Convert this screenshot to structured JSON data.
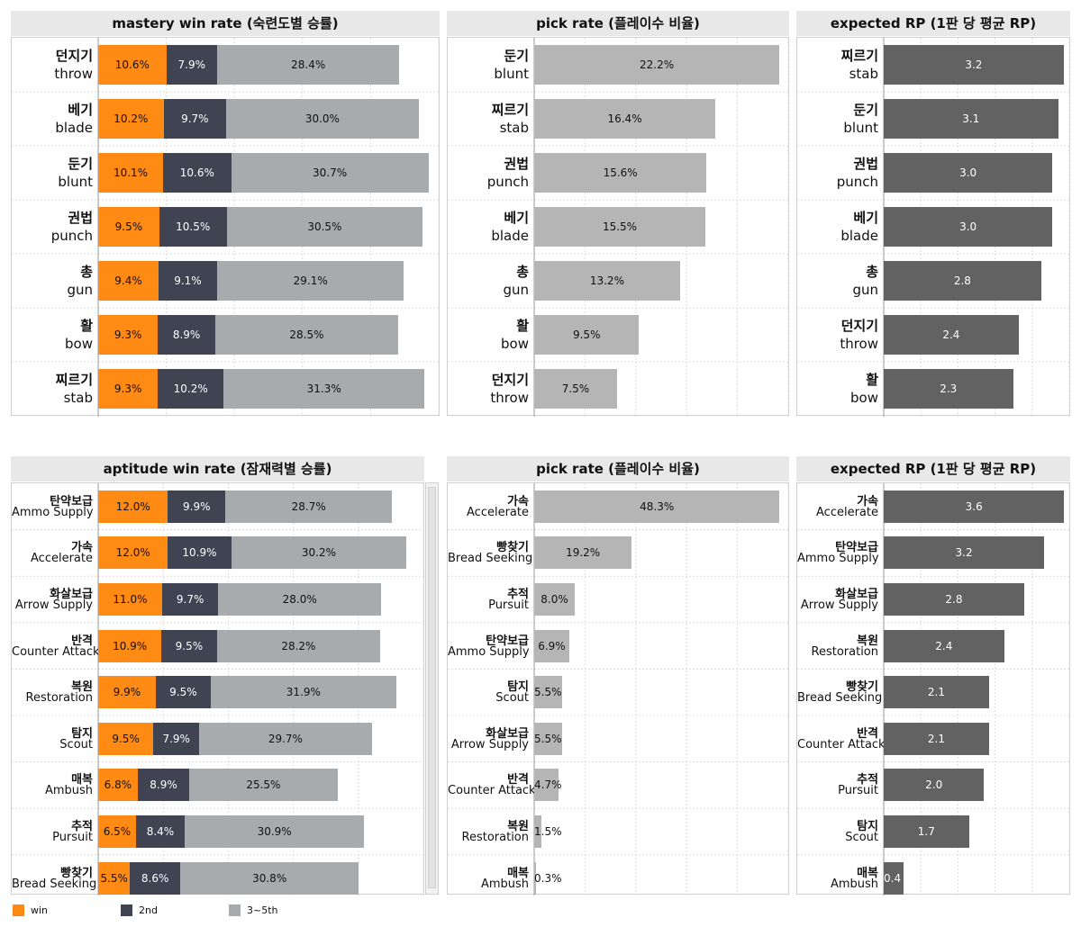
{
  "colors": {
    "win": "#ff8a14",
    "second": "#3f4352",
    "third": "#a7abae",
    "pick": "#b5b5b5",
    "rp": "#626262"
  },
  "legend": {
    "win": "win",
    "second": "2nd",
    "third": "3~5th"
  },
  "chart_data": [
    {
      "type": "bar",
      "title": "mastery win rate (숙련도별 승률)",
      "categories": [
        [
          "던지기",
          "throw"
        ],
        [
          "베기",
          "blade"
        ],
        [
          "둔기",
          "blunt"
        ],
        [
          "권법",
          "punch"
        ],
        [
          "총",
          "gun"
        ],
        [
          "활",
          "bow"
        ],
        [
          "찌르기",
          "stab"
        ]
      ],
      "series": [
        {
          "name": "win",
          "values": [
            10.6,
            10.2,
            10.1,
            9.5,
            9.4,
            9.3,
            9.3
          ]
        },
        {
          "name": "2nd",
          "values": [
            7.9,
            9.7,
            10.6,
            10.5,
            9.1,
            8.9,
            10.2
          ]
        },
        {
          "name": "3~5th",
          "values": [
            28.4,
            30.0,
            30.7,
            30.5,
            29.1,
            28.5,
            31.3
          ]
        }
      ],
      "unit": "%",
      "xlim": [
        0,
        53
      ]
    },
    {
      "type": "bar",
      "title": "pick rate (플레이수 비율)",
      "categories": [
        [
          "둔기",
          "blunt"
        ],
        [
          "찌르기",
          "stab"
        ],
        [
          "권법",
          "punch"
        ],
        [
          "베기",
          "blade"
        ],
        [
          "총",
          "gun"
        ],
        [
          "활",
          "bow"
        ],
        [
          "던지기",
          "throw"
        ]
      ],
      "values": [
        22.2,
        16.4,
        15.6,
        15.5,
        13.2,
        9.5,
        7.5
      ],
      "unit": "%",
      "xlim": [
        0,
        23
      ]
    },
    {
      "type": "bar",
      "title": "expected RP (1판 당 평균 RP)",
      "categories": [
        [
          "찌르기",
          "stab"
        ],
        [
          "둔기",
          "blunt"
        ],
        [
          "권법",
          "punch"
        ],
        [
          "베기",
          "blade"
        ],
        [
          "총",
          "gun"
        ],
        [
          "던지기",
          "throw"
        ],
        [
          "활",
          "bow"
        ]
      ],
      "values": [
        3.2,
        3.1,
        3.0,
        3.0,
        2.8,
        2.4,
        2.3
      ],
      "unit": "",
      "xlim": [
        0,
        3.3
      ]
    },
    {
      "type": "bar",
      "title": "aptitude win rate (잠재력별 승률)",
      "categories": [
        [
          "탄약보급",
          "Ammo Supply"
        ],
        [
          "가속",
          "Accelerate"
        ],
        [
          "화살보급",
          "Arrow Supply"
        ],
        [
          "반격",
          "Counter Attack"
        ],
        [
          "복원",
          "Restoration"
        ],
        [
          "탐지",
          "Scout"
        ],
        [
          "매복",
          "Ambush"
        ],
        [
          "추적",
          "Pursuit"
        ],
        [
          "빵찾기",
          "Bread Seeking"
        ]
      ],
      "series": [
        {
          "name": "win",
          "values": [
            12.0,
            12.0,
            11.0,
            10.9,
            9.9,
            9.5,
            6.8,
            6.5,
            5.5
          ]
        },
        {
          "name": "2nd",
          "values": [
            9.9,
            10.9,
            9.7,
            9.5,
            9.5,
            7.9,
            8.9,
            8.4,
            8.6
          ]
        },
        {
          "name": "3~5th",
          "values": [
            28.7,
            30.2,
            28.0,
            28.2,
            31.9,
            29.7,
            25.5,
            30.9,
            30.8
          ]
        }
      ],
      "unit": "%",
      "xlim": [
        0,
        56
      ]
    },
    {
      "type": "bar",
      "title": "pick rate (플레이수 비율)",
      "categories": [
        [
          "가속",
          "Accelerate"
        ],
        [
          "빵찾기",
          "Bread Seeking"
        ],
        [
          "추적",
          "Pursuit"
        ],
        [
          "탄약보급",
          "Ammo Supply"
        ],
        [
          "탐지",
          "Scout"
        ],
        [
          "화살보급",
          "Arrow Supply"
        ],
        [
          "반격",
          "Counter Attack"
        ],
        [
          "복원",
          "Restoration"
        ],
        [
          "매복",
          "Ambush"
        ]
      ],
      "values": [
        48.3,
        19.2,
        8.0,
        6.9,
        5.5,
        5.5,
        4.7,
        1.5,
        0.3
      ],
      "unit": "%",
      "xlim": [
        0,
        50
      ]
    },
    {
      "type": "bar",
      "title": "expected RP (1판 당 평균 RP)",
      "categories": [
        [
          "가속",
          "Accelerate"
        ],
        [
          "탄약보급",
          "Ammo Supply"
        ],
        [
          "화살보급",
          "Arrow Supply"
        ],
        [
          "복원",
          "Restoration"
        ],
        [
          "빵찾기",
          "Bread Seeking"
        ],
        [
          "반격",
          "Counter Attack"
        ],
        [
          "추적",
          "Pursuit"
        ],
        [
          "탐지",
          "Scout"
        ],
        [
          "매복",
          "Ambush"
        ]
      ],
      "values": [
        3.6,
        3.2,
        2.8,
        2.4,
        2.1,
        2.1,
        2.0,
        1.7,
        0.4
      ],
      "unit": "",
      "xlim": [
        0,
        3.7
      ]
    }
  ]
}
